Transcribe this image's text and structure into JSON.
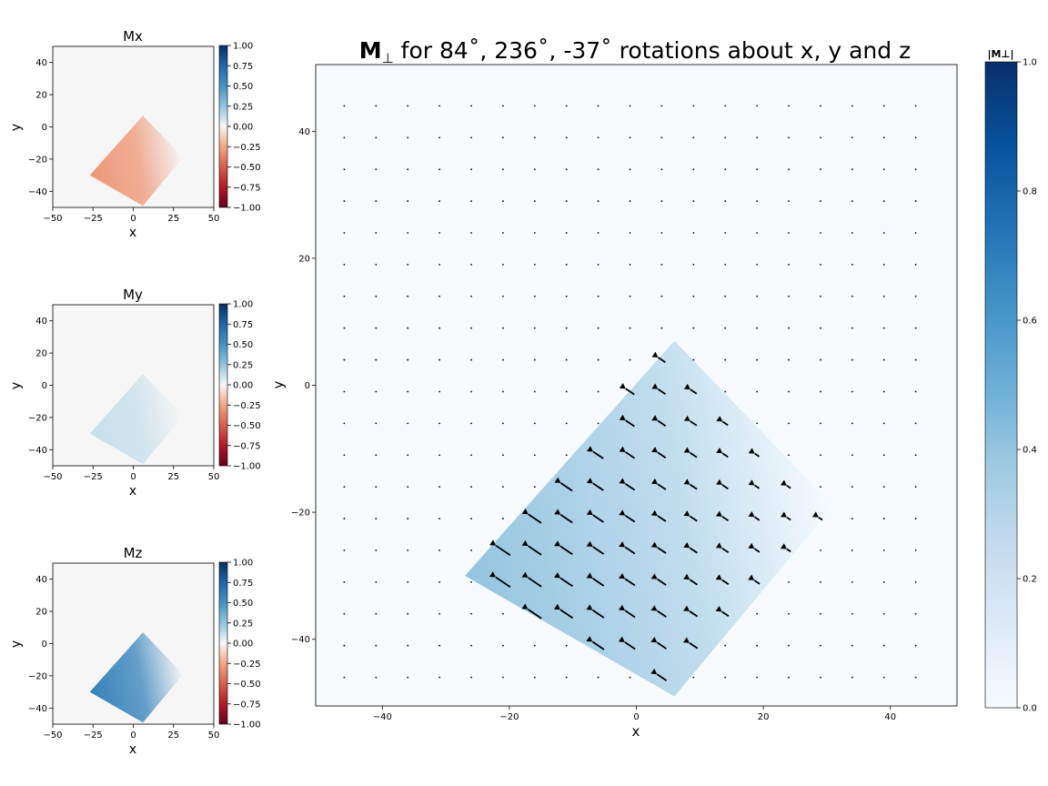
{
  "chart_data": [
    {
      "type": "heatmap",
      "title": "Mx",
      "xlabel": "x",
      "ylabel": "y",
      "xlim": [
        -50,
        50
      ],
      "ylim": [
        -50,
        50
      ],
      "xticks": [
        "−50",
        "−25",
        "0",
        "25",
        "50"
      ],
      "yticks": [
        "−40",
        "−20",
        "0",
        "20",
        "40"
      ],
      "colorbar": {
        "cmap": "RdBu",
        "range": [
          -1,
          1
        ],
        "ticks": [
          "1.00",
          "0.75",
          "0.50",
          "0.25",
          "0.00",
          "−0.25",
          "−0.50",
          "−0.75",
          "−1.00"
        ]
      },
      "region": {
        "shape": "rotated-square",
        "corners": [
          [
            6,
            7
          ],
          [
            31,
            -19
          ],
          [
            6,
            -49
          ],
          [
            -27,
            -30
          ]
        ],
        "value": -0.3
      },
      "background_value": 0
    },
    {
      "type": "heatmap",
      "title": "My",
      "xlabel": "x",
      "ylabel": "y",
      "xlim": [
        -50,
        50
      ],
      "ylim": [
        -50,
        50
      ],
      "xticks": [
        "−50",
        "−25",
        "0",
        "25",
        "50"
      ],
      "yticks": [
        "−40",
        "−20",
        "0",
        "20",
        "40"
      ],
      "colorbar": {
        "cmap": "RdBu",
        "range": [
          -1,
          1
        ],
        "ticks": [
          "1.00",
          "0.75",
          "0.50",
          "0.25",
          "0.00",
          "−0.25",
          "−0.50",
          "−0.75",
          "−1.00"
        ]
      },
      "region": {
        "shape": "rotated-square",
        "corners": [
          [
            6,
            7
          ],
          [
            31,
            -19
          ],
          [
            6,
            -49
          ],
          [
            -27,
            -30
          ]
        ],
        "value": 0.12
      },
      "background_value": 0
    },
    {
      "type": "heatmap",
      "title": "Mz",
      "xlabel": "x",
      "ylabel": "y",
      "xlim": [
        -50,
        50
      ],
      "ylim": [
        -50,
        50
      ],
      "xticks": [
        "−50",
        "−25",
        "0",
        "25",
        "50"
      ],
      "yticks": [
        "−40",
        "−20",
        "0",
        "20",
        "40"
      ],
      "colorbar": {
        "cmap": "RdBu",
        "range": [
          -1,
          1
        ],
        "ticks": [
          "1.00",
          "0.75",
          "0.50",
          "0.25",
          "0.00",
          "−0.25",
          "−0.50",
          "−0.75",
          "−1.00"
        ]
      },
      "region": {
        "shape": "rotated-square",
        "corners": [
          [
            6,
            7
          ],
          [
            31,
            -19
          ],
          [
            6,
            -49
          ],
          [
            -27,
            -30
          ]
        ],
        "value": 0.6
      },
      "background_value": 0
    },
    {
      "type": "heatmap",
      "title_bold": "M",
      "title_sub": "⊥",
      "title_rest": " for 84˚, 236˚, -37˚ rotations about x, y and z",
      "xlabel": "x",
      "ylabel": "y",
      "xlim": [
        -50.5,
        50.5
      ],
      "ylim": [
        -50.5,
        50.5
      ],
      "xticks": [
        "−40",
        "−20",
        "0",
        "20",
        "40"
      ],
      "yticks": [
        "−40",
        "−20",
        "0",
        "20",
        "40"
      ],
      "colorbar": {
        "cmap": "Blues",
        "range": [
          0,
          1
        ],
        "label": "|M⊥|",
        "ticks": [
          "1.0",
          "0.8",
          "0.6",
          "0.4",
          "0.2",
          "0.0"
        ]
      },
      "region": {
        "shape": "rotated-square",
        "corners": [
          [
            6,
            7
          ],
          [
            31,
            -19
          ],
          [
            6,
            -49
          ],
          [
            -27,
            -30
          ]
        ],
        "max_value": 0.4
      },
      "quiver": {
        "grid_start": -46,
        "grid_step": 5,
        "grid_count": 19,
        "arrow_direction": [
          -0.83,
          0.56
        ]
      }
    }
  ]
}
